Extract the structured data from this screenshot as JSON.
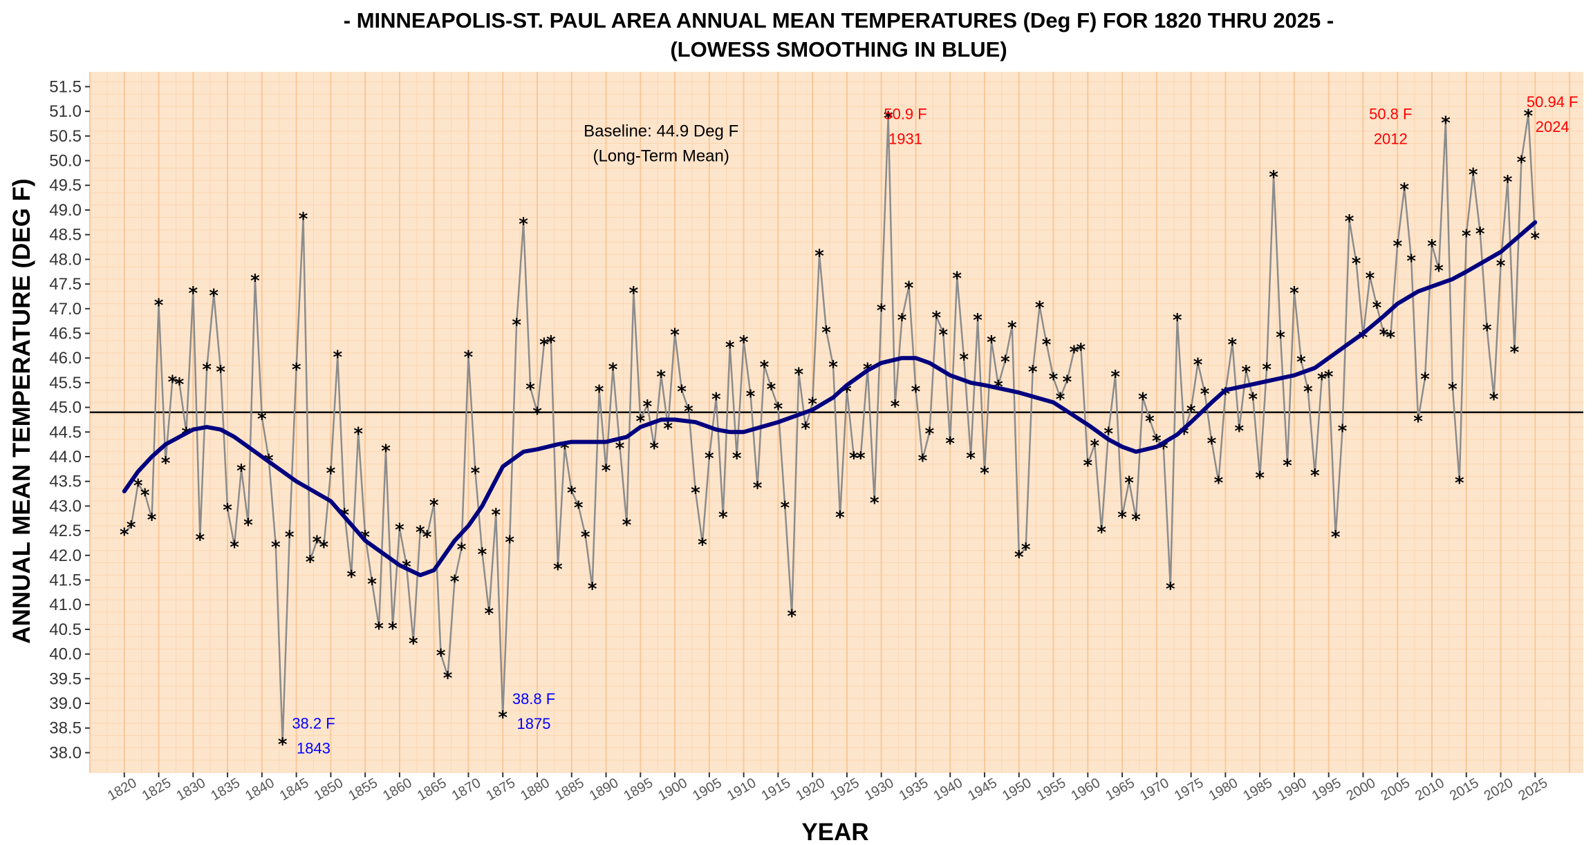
{
  "chart_data": {
    "type": "line",
    "title_line1": "- MINNEAPOLIS-ST. PAUL AREA ANNUAL MEAN TEMPERATURES (Deg F) FOR 1820 THRU 2025 -",
    "title_line2": "(LOWESS SMOOTHING IN BLUE)",
    "xlabel": "YEAR",
    "ylabel": "ANNUAL MEAN TEMPERATURE (DEG F)",
    "xlim": [
      1815,
      2032
    ],
    "ylim": [
      37.6,
      51.8
    ],
    "y_ticks": [
      38.0,
      38.5,
      39.0,
      39.5,
      40.0,
      40.5,
      41.0,
      41.5,
      42.0,
      42.5,
      43.0,
      43.5,
      44.0,
      44.5,
      45.0,
      45.5,
      46.0,
      46.5,
      47.0,
      47.5,
      48.0,
      48.5,
      49.0,
      49.5,
      50.0,
      50.5,
      51.0,
      51.5
    ],
    "y_tick_labels": [
      "38.0",
      "38.5",
      "39.0",
      "39.5",
      "40.0",
      "40.5",
      "41.0",
      "41.5",
      "42.0",
      "42.5",
      "43.0",
      "43.5",
      "44.0",
      "44.5",
      "45.0",
      "45.5",
      "46.0",
      "46.5",
      "47.0",
      "47.5",
      "48.0",
      "48.5",
      "49.0",
      "49.5",
      "50.0",
      "50.5",
      "51.0",
      "51.5"
    ],
    "x_ticks": [
      1820,
      1825,
      1830,
      1835,
      1840,
      1845,
      1850,
      1855,
      1860,
      1865,
      1870,
      1875,
      1880,
      1885,
      1890,
      1895,
      1900,
      1905,
      1910,
      1915,
      1920,
      1925,
      1930,
      1935,
      1940,
      1945,
      1950,
      1955,
      1960,
      1965,
      1970,
      1975,
      1980,
      1985,
      1990,
      1995,
      2000,
      2005,
      2010,
      2015,
      2020,
      2025
    ],
    "x_tick_labels": [
      "1820",
      "1825",
      "1830",
      "1835",
      "1840",
      "1845",
      "1850",
      "1855",
      "1860",
      "1865",
      "1870",
      "1875",
      "1880",
      "1885",
      "1890",
      "1895",
      "1900",
      "1905",
      "1910",
      "1915",
      "1920",
      "1925",
      "1930",
      "1935",
      "1940",
      "1945",
      "1950",
      "1955",
      "1960",
      "1965",
      "1970",
      "1975",
      "1980",
      "1985",
      "1990",
      "1995",
      "2000",
      "2005",
      "2010",
      "2015",
      "2020",
      "2025"
    ],
    "grid": true,
    "colors": {
      "panel": "#fde5cc",
      "grid_major": "#f9c898",
      "grid_minor": "#fcd6b0",
      "series_line": "#8c8c8c",
      "smooth": "#00007f",
      "baseline": "#000000",
      "warm_annotation": "#ff0000",
      "cold_annotation": "#0000ff"
    },
    "series": [
      {
        "role": "annual-means",
        "x": [
          1820,
          1821,
          1822,
          1823,
          1824,
          1825,
          1826,
          1827,
          1828,
          1829,
          1830,
          1831,
          1832,
          1833,
          1834,
          1835,
          1836,
          1837,
          1838,
          1839,
          1840,
          1841,
          1842,
          1843,
          1844,
          1845,
          1846,
          1847,
          1848,
          1849,
          1850,
          1851,
          1852,
          1853,
          1854,
          1855,
          1856,
          1857,
          1858,
          1859,
          1860,
          1861,
          1862,
          1863,
          1864,
          1865,
          1866,
          1867,
          1868,
          1869,
          1870,
          1871,
          1872,
          1873,
          1874,
          1875,
          1876,
          1877,
          1878,
          1879,
          1880,
          1881,
          1882,
          1883,
          1884,
          1885,
          1886,
          1887,
          1888,
          1889,
          1890,
          1891,
          1892,
          1893,
          1894,
          1895,
          1896,
          1897,
          1898,
          1899,
          1900,
          1901,
          1902,
          1903,
          1904,
          1905,
          1906,
          1907,
          1908,
          1909,
          1910,
          1911,
          1912,
          1913,
          1914,
          1915,
          1916,
          1917,
          1918,
          1919,
          1920,
          1921,
          1922,
          1923,
          1924,
          1925,
          1926,
          1927,
          1928,
          1929,
          1930,
          1931,
          1932,
          1933,
          1934,
          1935,
          1936,
          1937,
          1938,
          1939,
          1940,
          1941,
          1942,
          1943,
          1944,
          1945,
          1946,
          1947,
          1948,
          1949,
          1950,
          1951,
          1952,
          1953,
          1954,
          1955,
          1956,
          1957,
          1958,
          1959,
          1960,
          1961,
          1962,
          1963,
          1964,
          1965,
          1966,
          1967,
          1968,
          1969,
          1970,
          1971,
          1972,
          1973,
          1974,
          1975,
          1976,
          1977,
          1978,
          1979,
          1980,
          1981,
          1982,
          1983,
          1984,
          1985,
          1986,
          1987,
          1988,
          1989,
          1990,
          1991,
          1992,
          1993,
          1994,
          1995,
          1996,
          1997,
          1998,
          1999,
          2000,
          2001,
          2002,
          2003,
          2004,
          2005,
          2006,
          2007,
          2008,
          2009,
          2010,
          2011,
          2012,
          2013,
          2014,
          2015,
          2016,
          2017,
          2018,
          2019,
          2020,
          2021,
          2022,
          2023,
          2024,
          2025
        ],
        "y": [
          42.45,
          42.6,
          43.45,
          43.25,
          42.75,
          47.1,
          43.9,
          45.55,
          45.5,
          44.5,
          47.35,
          42.35,
          45.8,
          47.3,
          45.75,
          42.95,
          42.2,
          43.75,
          42.65,
          47.6,
          44.8,
          43.95,
          42.2,
          38.2,
          42.4,
          45.8,
          48.85,
          41.9,
          42.3,
          42.2,
          43.7,
          46.05,
          42.85,
          41.6,
          44.5,
          42.4,
          41.45,
          40.55,
          44.15,
          40.55,
          42.55,
          41.8,
          40.25,
          42.5,
          42.4,
          43.05,
          40.0,
          39.55,
          41.5,
          42.15,
          46.05,
          43.7,
          42.05,
          40.85,
          42.85,
          38.75,
          42.3,
          46.7,
          48.75,
          45.4,
          44.9,
          46.3,
          46.35,
          41.75,
          44.2,
          43.3,
          43.0,
          42.4,
          41.35,
          45.35,
          43.75,
          45.8,
          44.2,
          42.65,
          47.35,
          44.75,
          45.05,
          44.2,
          45.65,
          44.6,
          46.5,
          45.35,
          44.95,
          43.3,
          42.25,
          44.0,
          45.2,
          42.8,
          46.25,
          44.0,
          46.35,
          45.25,
          43.4,
          45.85,
          45.4,
          45.0,
          43.0,
          40.8,
          45.7,
          44.6,
          45.1,
          48.1,
          46.55,
          45.85,
          42.8,
          45.35,
          44.0,
          44.0,
          45.8,
          43.1,
          47.0,
          50.9,
          45.05,
          46.8,
          47.45,
          45.35,
          43.95,
          44.5,
          46.85,
          46.5,
          44.3,
          47.65,
          46.0,
          44.0,
          46.8,
          43.7,
          46.35,
          45.45,
          45.95,
          46.65,
          42.0,
          42.15,
          45.75,
          47.05,
          46.3,
          45.6,
          45.2,
          45.55,
          46.15,
          46.2,
          43.85,
          44.25,
          42.5,
          44.5,
          45.65,
          42.8,
          43.5,
          42.75,
          45.2,
          44.75,
          44.35,
          44.2,
          41.35,
          46.8,
          44.5,
          44.95,
          45.9,
          45.3,
          44.3,
          43.5,
          45.3,
          46.3,
          44.55,
          45.75,
          45.2,
          43.6,
          45.8,
          49.7,
          46.45,
          43.85,
          47.35,
          45.95,
          45.35,
          43.65,
          45.6,
          45.65,
          42.4,
          44.55,
          48.8,
          47.95,
          46.45,
          47.65,
          47.05,
          46.5,
          46.45,
          48.3,
          49.45,
          48.0,
          44.75,
          45.6,
          48.3,
          47.8,
          50.8,
          45.4,
          43.5,
          48.5,
          49.75,
          48.55,
          46.6,
          45.2,
          47.9,
          49.6,
          46.15,
          50.0,
          50.94,
          48.45
        ]
      },
      {
        "role": "lowess-smooth",
        "x": [
          1820,
          1822,
          1824,
          1826,
          1828,
          1830,
          1832,
          1834,
          1836,
          1838,
          1840,
          1845,
          1850,
          1855,
          1860,
          1863,
          1865,
          1868,
          1870,
          1872,
          1875,
          1878,
          1880,
          1883,
          1885,
          1890,
          1893,
          1895,
          1898,
          1900,
          1903,
          1906,
          1908,
          1910,
          1915,
          1920,
          1923,
          1925,
          1928,
          1930,
          1933,
          1935,
          1937,
          1940,
          1943,
          1945,
          1950,
          1955,
          1960,
          1963,
          1965,
          1967,
          1970,
          1973,
          1975,
          1978,
          1980,
          1985,
          1990,
          1993,
          1995,
          1998,
          2000,
          2003,
          2005,
          2008,
          2010,
          2013,
          2015,
          2020,
          2025
        ],
        "y": [
          43.3,
          43.7,
          44.0,
          44.25,
          44.4,
          44.55,
          44.6,
          44.55,
          44.4,
          44.2,
          44.0,
          43.5,
          43.1,
          42.3,
          41.8,
          41.6,
          41.7,
          42.3,
          42.6,
          43.0,
          43.8,
          44.1,
          44.15,
          44.25,
          44.3,
          44.3,
          44.4,
          44.6,
          44.75,
          44.75,
          44.7,
          44.55,
          44.5,
          44.5,
          44.7,
          44.95,
          45.2,
          45.45,
          45.75,
          45.9,
          46.0,
          46.0,
          45.9,
          45.65,
          45.5,
          45.45,
          45.3,
          45.1,
          44.65,
          44.35,
          44.2,
          44.1,
          44.2,
          44.45,
          44.7,
          45.1,
          45.35,
          45.5,
          45.65,
          45.8,
          46.0,
          46.3,
          46.5,
          46.85,
          47.1,
          47.35,
          47.45,
          47.6,
          47.75,
          48.15,
          48.75
        ]
      }
    ],
    "baseline": {
      "value": 44.9,
      "label_line1": "Baseline: 44.9 Deg F",
      "label_line2": "(Long-Term Mean)"
    },
    "annotations": [
      {
        "line1": "50.9 F",
        "line2": "1931",
        "x": 1933.5,
        "y": 50.95,
        "color": "#ff0000"
      },
      {
        "line1": "50.8 F",
        "line2": "2012",
        "x": 2004.0,
        "y": 50.95,
        "color": "#ff0000"
      },
      {
        "line1": "50.94 F",
        "line2": "2024",
        "x": 2027.5,
        "y": 51.2,
        "color": "#ff0000"
      },
      {
        "line1": "38.2 F",
        "line2": "1843",
        "x": 1847.5,
        "y": 38.6,
        "color": "#0000ff"
      },
      {
        "line1": "38.8 F",
        "line2": "1875",
        "x": 1879.5,
        "y": 39.1,
        "color": "#0000ff"
      }
    ]
  }
}
